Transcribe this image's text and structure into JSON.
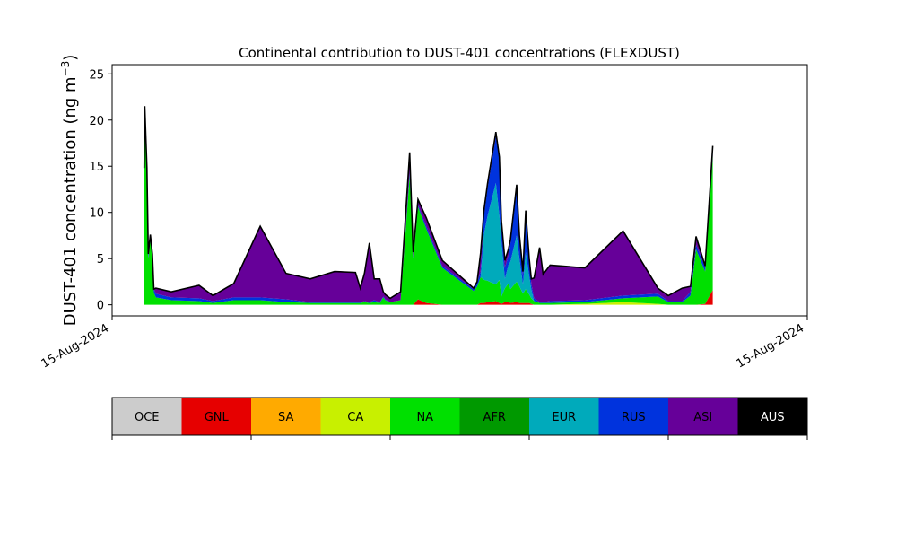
{
  "chart_data": {
    "type": "area",
    "stacked": true,
    "title": "Continental contribution to DUST-401 concentrations (FLEXDUST)",
    "ylabel_main": "DUST-401 concentration (ng m",
    "ylabel_sup": "−3",
    "ylabel_close": ")",
    "xlabel": "",
    "xtick_labels": [
      "15-Aug-2024",
      "15-Aug-2024"
    ],
    "ylim": [
      -1.2,
      26
    ],
    "yticks": [
      0,
      5,
      10,
      15,
      20,
      25
    ],
    "xlim": [
      0,
      1
    ],
    "grid": false,
    "line_color": "#000000",
    "x": [
      0.046,
      0.047,
      0.05,
      0.052,
      0.055,
      0.058,
      0.06,
      0.063,
      0.085,
      0.125,
      0.145,
      0.175,
      0.213,
      0.25,
      0.285,
      0.32,
      0.35,
      0.357,
      0.363,
      0.37,
      0.377,
      0.385,
      0.39,
      0.393,
      0.4,
      0.415,
      0.428,
      0.433,
      0.44,
      0.452,
      0.475,
      0.52,
      0.525,
      0.53,
      0.535,
      0.54,
      0.552,
      0.557,
      0.56,
      0.565,
      0.57,
      0.573,
      0.582,
      0.586,
      0.591,
      0.595,
      0.6,
      0.603,
      0.607,
      0.615,
      0.62,
      0.63,
      0.68,
      0.735,
      0.785,
      0.8,
      0.82,
      0.832,
      0.84,
      0.853,
      0.864
    ],
    "series": [
      {
        "name": "GNL",
        "color": "#e60000",
        "values": [
          0,
          0,
          0,
          0,
          0,
          0,
          0,
          0,
          0,
          0,
          0,
          0,
          0,
          0,
          0,
          0,
          0,
          0,
          0,
          0,
          0,
          0,
          0,
          0,
          0,
          0,
          0,
          0,
          0.6,
          0.2,
          0,
          0,
          0,
          0.2,
          0.2,
          0.3,
          0.4,
          0.2,
          0.1,
          0.3,
          0.3,
          0.2,
          0.3,
          0.2,
          0.2,
          0.2,
          0.2,
          0.1,
          0,
          0,
          0,
          0,
          0,
          0,
          0,
          0,
          0,
          0,
          0,
          0.1,
          1.6
        ]
      },
      {
        "name": "CA",
        "color": "#c8f000",
        "values": [
          0,
          0,
          0,
          0,
          0,
          0,
          0,
          0,
          0,
          0,
          0,
          0,
          0,
          0,
          0,
          0,
          0,
          0,
          0,
          0,
          0,
          0,
          0,
          0,
          0,
          0,
          0,
          0,
          0,
          0,
          0,
          0,
          0,
          0,
          0,
          0,
          0,
          0,
          0,
          0,
          0,
          0,
          0,
          0,
          0,
          0,
          0,
          0,
          0,
          0,
          0,
          0,
          0.1,
          0.3,
          0.1,
          0,
          0,
          0,
          0,
          0,
          0
        ]
      },
      {
        "name": "NA",
        "color": "#00e000",
        "values": [
          14,
          20,
          14,
          5,
          7,
          5,
          1.3,
          0.8,
          0.5,
          0.4,
          0.2,
          0.5,
          0.5,
          0.3,
          0.2,
          0.2,
          0.2,
          0.2,
          0.3,
          0.2,
          0.3,
          0.2,
          0.8,
          0.5,
          0.3,
          0.5,
          14,
          5,
          10,
          8,
          4,
          1.5,
          2,
          2.8,
          2.5,
          2.3,
          1.8,
          2.5,
          0.8,
          1.5,
          2,
          1.5,
          2.2,
          1.8,
          1,
          1.5,
          0.9,
          0.6,
          0.4,
          0.2,
          0.2,
          0.2,
          0.2,
          0.4,
          0.8,
          0.3,
          0.3,
          1,
          6,
          3.5,
          14.5
        ]
      },
      {
        "name": "EUR",
        "color": "#00aabb",
        "values": [
          0,
          0,
          0,
          0,
          0,
          0,
          0,
          0,
          0,
          0,
          0,
          0,
          0,
          0,
          0,
          0,
          0,
          0,
          0,
          0,
          0,
          0,
          0,
          0,
          0,
          0,
          0,
          0,
          0,
          0,
          0,
          0,
          0,
          0,
          5,
          7,
          11,
          7,
          6,
          1,
          2,
          3,
          5,
          3,
          1,
          4,
          2,
          1,
          0,
          0,
          0,
          0,
          0,
          0,
          0,
          0,
          0,
          0,
          0,
          0,
          0
        ]
      },
      {
        "name": "RUS",
        "color": "#0033dd",
        "values": [
          0.8,
          1.5,
          0.8,
          0.5,
          0.6,
          0.5,
          0.4,
          0.4,
          0.3,
          0.3,
          0.2,
          0.3,
          0.3,
          0.3,
          0.1,
          0.1,
          0.1,
          0.1,
          0.1,
          0.1,
          0.2,
          0.1,
          0.1,
          0.1,
          0,
          0,
          0.5,
          0.2,
          0.2,
          0.3,
          0.2,
          0.2,
          0.4,
          0.6,
          2,
          3,
          5,
          6,
          2,
          1.2,
          1,
          2,
          5,
          2,
          1,
          4,
          1.5,
          0.6,
          0.3,
          0.1,
          0.1,
          0.2,
          0.2,
          0.3,
          0.3,
          0.1,
          0.1,
          0.4,
          0.5,
          0.5,
          1
        ]
      },
      {
        "name": "ASI",
        "color": "#660099",
        "values": [
          0,
          0,
          0,
          0,
          0,
          0,
          0,
          0.6,
          0.6,
          1.4,
          0.6,
          1.5,
          7.7,
          2.8,
          2.5,
          3.3,
          3.2,
          1.5,
          3,
          6.4,
          2.3,
          2.5,
          0.5,
          0.5,
          0.4,
          0.9,
          2,
          0.5,
          0.6,
          0.9,
          0.6,
          0.1,
          0.1,
          2,
          0.6,
          0.5,
          0.5,
          0.3,
          0.2,
          0.8,
          0.7,
          0.4,
          0.5,
          0.5,
          0.4,
          0.5,
          0.4,
          0.5,
          2.2,
          5.9,
          3,
          3.9,
          3.5,
          7,
          0.6,
          0.6,
          1.4,
          0.6,
          0.9,
          0.1,
          0.1
        ]
      }
    ],
    "legend_placement": "bottom",
    "legend": [
      {
        "label": "OCE",
        "color": "#cccccc"
      },
      {
        "label": "GNL",
        "color": "#e60000"
      },
      {
        "label": "SA",
        "color": "#ffaa00"
      },
      {
        "label": "CA",
        "color": "#c8f000"
      },
      {
        "label": "NA",
        "color": "#00e000"
      },
      {
        "label": "AFR",
        "color": "#009900"
      },
      {
        "label": "EUR",
        "color": "#00aabb"
      },
      {
        "label": "RUS",
        "color": "#0033dd"
      },
      {
        "label": "ASI",
        "color": "#660099"
      },
      {
        "label": "AUS",
        "color": "#000000"
      }
    ]
  }
}
